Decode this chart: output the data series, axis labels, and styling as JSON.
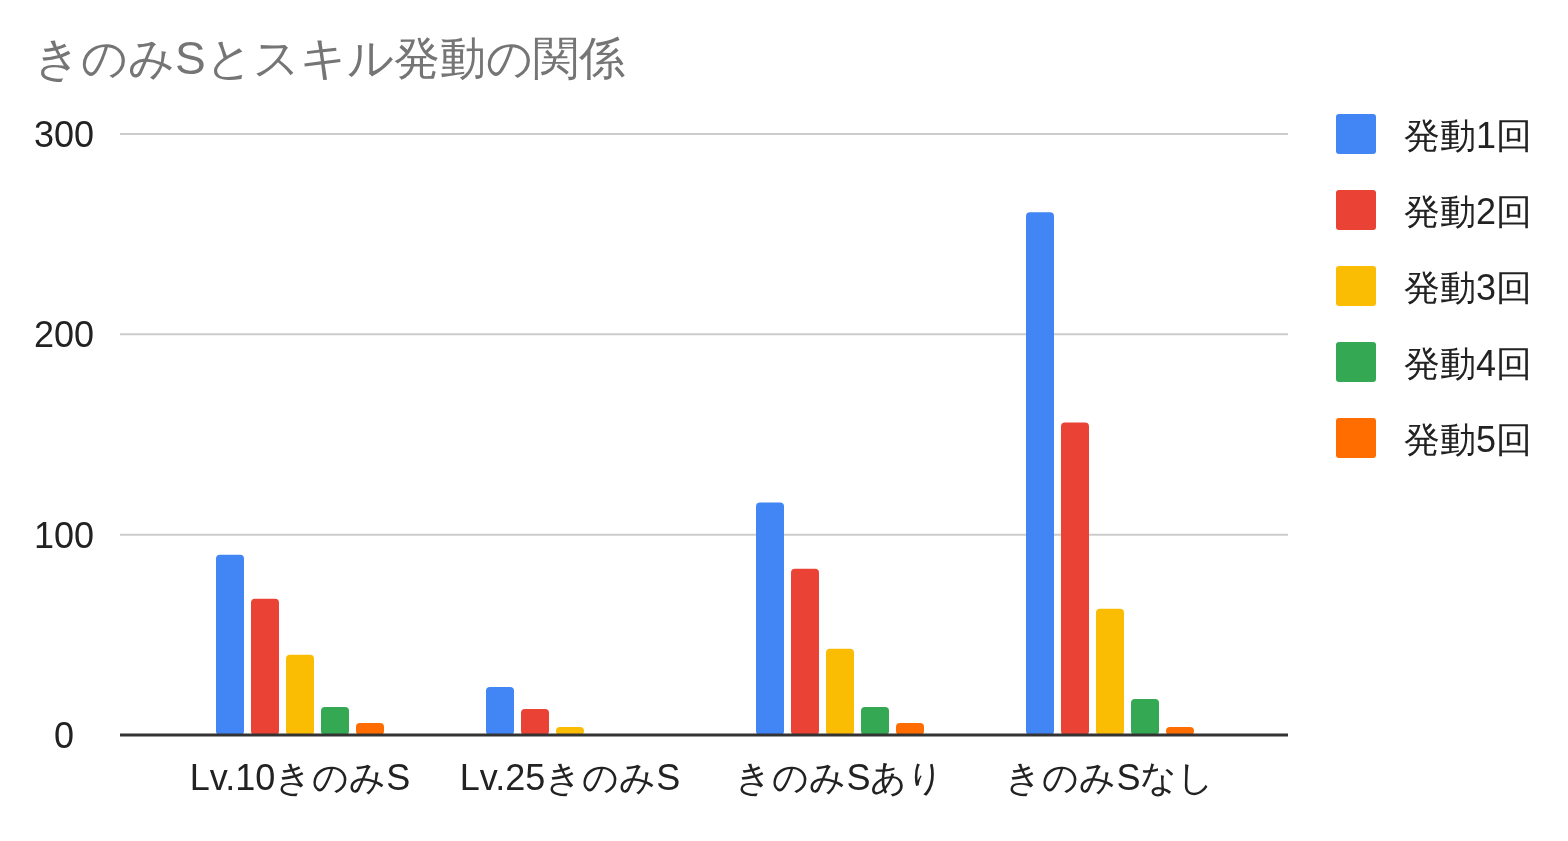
{
  "chart_data": {
    "type": "bar",
    "title": "きのみSとスキル発動の関係",
    "categories": [
      "Lv.10きのみS",
      "Lv.25きのみS",
      "きのみSあり",
      "きのみSなし"
    ],
    "series": [
      {
        "name": "発動1回",
        "color": "#4285f4",
        "values": [
          90,
          24,
          116,
          261
        ]
      },
      {
        "name": "発動2回",
        "color": "#ea4335",
        "values": [
          68,
          13,
          83,
          156
        ]
      },
      {
        "name": "発動3回",
        "color": "#fbbc04",
        "values": [
          40,
          4,
          43,
          63
        ]
      },
      {
        "name": "発動4回",
        "color": "#34a853",
        "values": [
          14,
          0,
          14,
          18
        ]
      },
      {
        "name": "発動5回",
        "color": "#ff6d01",
        "values": [
          6,
          0,
          6,
          4
        ]
      }
    ],
    "ylim": [
      0,
      300
    ],
    "yticks": [
      0,
      100,
      200,
      300
    ],
    "grid": "y",
    "legend": "right"
  }
}
